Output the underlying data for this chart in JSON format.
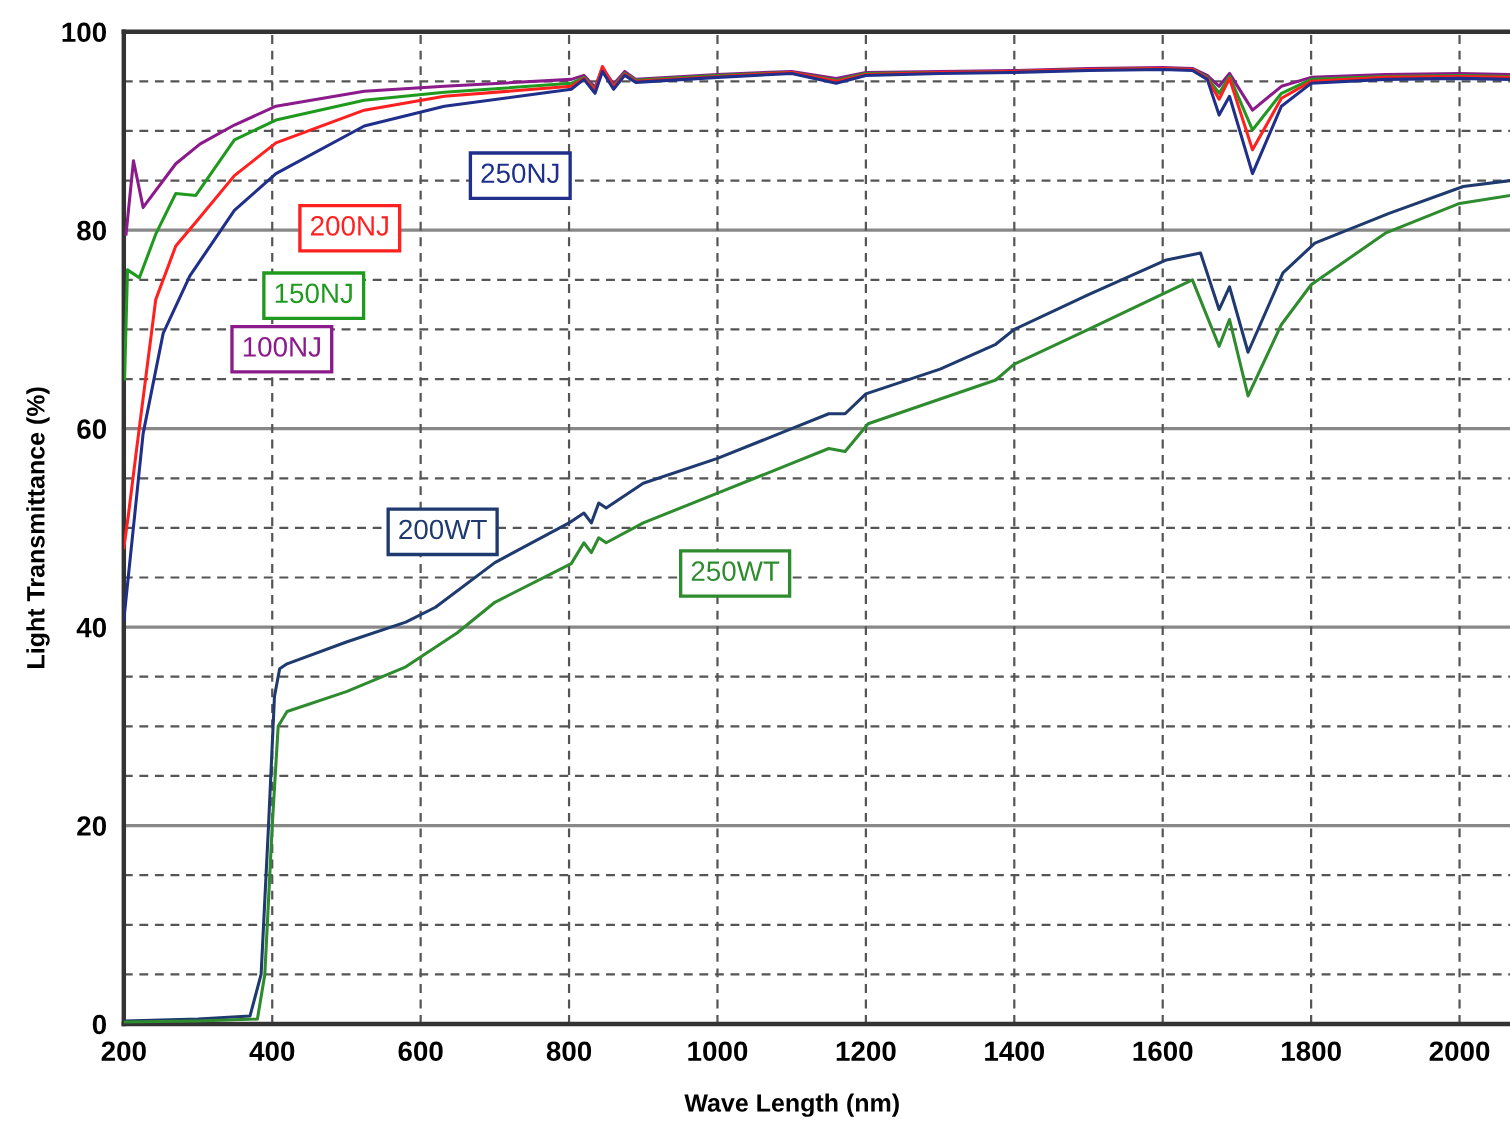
{
  "chart_data": {
    "type": "line",
    "xlabel": "Wave Length (nm)",
    "ylabel": "Light Transmittance (%)",
    "xlim": [
      200,
      2068
    ],
    "ylim": [
      0,
      100
    ],
    "xticks": [
      200,
      400,
      600,
      800,
      1000,
      1200,
      1400,
      1600,
      1800,
      2000
    ],
    "yticks": [
      0,
      {
        "value": 5,
        "label": null
      },
      {
        "value": 10,
        "label": null
      },
      {
        "value": 15,
        "label": null
      },
      20,
      {
        "value": 25,
        "label": null
      },
      {
        "value": 30,
        "label": null
      },
      {
        "value": 35,
        "label": null
      },
      40,
      {
        "value": 45,
        "label": null
      },
      {
        "value": 50,
        "label": null
      },
      {
        "value": 55,
        "label": null
      },
      60,
      {
        "value": 65,
        "label": null
      },
      {
        "value": 70,
        "label": null
      },
      {
        "value": 75,
        "label": null
      },
      80,
      {
        "value": 85,
        "label": null
      },
      {
        "value": 90,
        "label": null
      },
      {
        "value": 95,
        "label": null
      },
      100
    ],
    "grid": true,
    "marker": "none",
    "line_style": "solid",
    "series": [
      {
        "color": "#8b1a8b",
        "x": [
          203,
          213,
          226,
          270,
          303,
          349,
          405,
          524,
          632,
          803,
          820,
          835,
          845,
          860,
          875,
          890,
          1000,
          1100,
          1160,
          1200,
          1300,
          1400,
          1500,
          1600,
          1640,
          1660,
          1676,
          1690,
          1721,
          1760,
          1800,
          1900,
          2000,
          2068
        ],
        "values": [
          79.6,
          87,
          82.3,
          86.7,
          88.7,
          90.6,
          92.5,
          94,
          94.5,
          95.2,
          95.6,
          94.4,
          96.4,
          94.7,
          96,
          95.2,
          95.7,
          96,
          95.3,
          95.9,
          96,
          96.1,
          96.3,
          96.4,
          96.3,
          95.6,
          94.5,
          95.8,
          92.1,
          94.5,
          95.4,
          95.7,
          95.8,
          95.7
        ]
      },
      {
        "color": "#1f9a1f",
        "x": [
          201,
          205,
          221,
          243,
          270,
          297,
          349,
          405,
          524,
          632,
          803,
          820,
          835,
          845,
          860,
          875,
          890,
          1000,
          1100,
          1160,
          1200,
          1300,
          1400,
          1500,
          1600,
          1640,
          1660,
          1676,
          1690,
          1721,
          1760,
          1800,
          1900,
          2000,
          2068
        ],
        "values": [
          65,
          76,
          75.2,
          79.6,
          83.7,
          83.5,
          89.1,
          91.1,
          93.1,
          93.9,
          94.8,
          95.4,
          94.2,
          96.2,
          94.5,
          95.8,
          95.1,
          95.6,
          95.9,
          95.1,
          95.8,
          95.9,
          96,
          96.2,
          96.3,
          96.2,
          95.4,
          93.8,
          95.5,
          90.1,
          93.8,
          95.2,
          95.5,
          95.6,
          95.5
        ]
      },
      {
        "color": "#ff2020",
        "x": [
          200,
          206,
          216,
          243,
          270,
          297,
          349,
          405,
          524,
          632,
          803,
          820,
          835,
          845,
          860,
          875,
          890,
          1000,
          1100,
          1160,
          1200,
          1300,
          1400,
          1500,
          1600,
          1640,
          1660,
          1676,
          1690,
          1721,
          1760,
          1800,
          1900,
          2000,
          2068
        ],
        "values": [
          48,
          51.2,
          57.2,
          73,
          78.4,
          80.8,
          85.5,
          88.8,
          92.1,
          93.5,
          94.5,
          95.3,
          94.1,
          96.5,
          94.4,
          95.7,
          95,
          95.5,
          95.9,
          95,
          95.7,
          95.9,
          96,
          96.2,
          96.3,
          96.2,
          95.3,
          93.2,
          95.3,
          88.1,
          93.3,
          95,
          95.4,
          95.5,
          95.4
        ]
      },
      {
        "color": "#1f2f8a",
        "x": [
          200,
          226,
          253,
          289,
          349,
          405,
          524,
          632,
          803,
          820,
          835,
          845,
          860,
          875,
          890,
          1000,
          1100,
          1160,
          1200,
          1300,
          1400,
          1500,
          1600,
          1640,
          1660,
          1676,
          1690,
          1721,
          1760,
          1800,
          1900,
          2000,
          2068
        ],
        "values": [
          40.7,
          59.5,
          69.6,
          75.4,
          82,
          85.7,
          90.5,
          92.5,
          94.2,
          95.2,
          93.8,
          96,
          94.2,
          95.6,
          94.9,
          95.4,
          95.8,
          94.8,
          95.6,
          95.8,
          95.9,
          96.1,
          96.2,
          96.1,
          95.2,
          91.6,
          93.5,
          85.7,
          92.5,
          94.8,
          95.2,
          95.3,
          95.2
        ]
      },
      {
        "color": "#1f3a6e",
        "x": [
          200,
          300,
          370,
          385,
          395,
          403,
          410,
          420,
          500,
          580,
          620,
          700,
          800,
          820,
          830,
          840,
          850,
          900,
          1000,
          1100,
          1150,
          1172,
          1200,
          1300,
          1375,
          1400,
          1500,
          1605,
          1651,
          1676,
          1690,
          1715,
          1762,
          1805,
          1905,
          2005,
          2068
        ],
        "values": [
          0.3,
          0.5,
          0.8,
          5,
          20,
          33,
          35.8,
          36.3,
          38.5,
          40.5,
          42,
          46.5,
          50.5,
          51.5,
          50.5,
          52.5,
          52,
          54.5,
          57,
          60,
          61.5,
          61.5,
          63.5,
          66,
          68.5,
          70,
          73.5,
          77,
          77.7,
          72,
          74.3,
          67.7,
          75.7,
          78.7,
          81.7,
          84.4,
          85
        ]
      },
      {
        "color": "#2e8b2e",
        "x": [
          200,
          300,
          380,
          390,
          400,
          408,
          420,
          500,
          580,
          649,
          700,
          803,
          820,
          830,
          840,
          850,
          900,
          1000,
          1100,
          1150,
          1172,
          1203,
          1375,
          1400,
          1500,
          1640,
          1676,
          1690,
          1715,
          1760,
          1800,
          1900,
          2000,
          2068
        ],
        "values": [
          0.2,
          0.3,
          0.5,
          5,
          20,
          30,
          31.5,
          33.5,
          36,
          39.4,
          42.5,
          46.4,
          48.5,
          47.5,
          49,
          48.5,
          50.5,
          53.5,
          56.5,
          58,
          57.7,
          60.5,
          64.9,
          66.5,
          70,
          75,
          68.3,
          71,
          63.3,
          70.5,
          74.5,
          79.7,
          82.7,
          83.5
        ]
      }
    ],
    "annotations": [
      "100NJ",
      "150NJ",
      "200NJ",
      "250NJ",
      "200WT",
      "250WT"
    ]
  }
}
